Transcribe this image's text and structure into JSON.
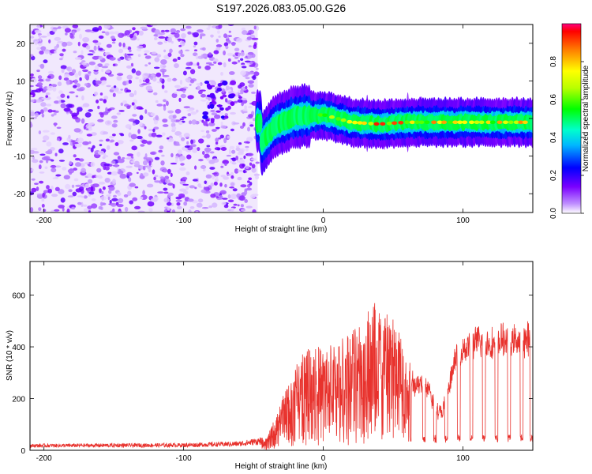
{
  "chart_data": [
    {
      "type": "heatmap",
      "title": "S197.2026.083.05.00.G26",
      "xlabel": "Height of straight line (km)",
      "ylabel": "Frequency (Hz)",
      "xlim": [
        -210,
        150
      ],
      "ylim": [
        -25,
        25
      ],
      "xticks": [
        -200,
        -100,
        0,
        100
      ],
      "xtick_labels": [
        "-200",
        "-100",
        "0",
        "100"
      ],
      "yticks": [
        -20,
        -10,
        0,
        10,
        20
      ],
      "ytick_labels": [
        "-20",
        "-10",
        "0",
        "10",
        "20"
      ],
      "colorbar": {
        "label": "Normalized spectral amplitude",
        "range": [
          0,
          1
        ],
        "ticks": [
          0.0,
          0.2,
          0.4,
          0.6,
          0.8
        ],
        "tick_labels": [
          "0.0",
          "0.2",
          "0.4",
          "0.6",
          "0.8"
        ]
      },
      "regions": [
        {
          "name": "noise",
          "x_range": [
            -210,
            -47
          ],
          "y_range": [
            -25,
            25
          ],
          "amplitude_range": [
            0.0,
            0.15
          ]
        },
        {
          "name": "signal-track",
          "x_range": [
            -47,
            150
          ],
          "center_freq_hz": [
            [
              -45,
              -7
            ],
            [
              -35,
              -2
            ],
            [
              -20,
              0.5
            ],
            [
              0,
              1
            ],
            [
              20,
              -1
            ],
            [
              40,
              -1.5
            ],
            [
              60,
              -1
            ],
            [
              100,
              -1
            ],
            [
              150,
              -1
            ]
          ],
          "peak_amplitude": 0.95
        }
      ]
    },
    {
      "type": "line",
      "title": "",
      "xlabel": "Height of straight line (km)",
      "ylabel": "SNR (10 * v/v)",
      "xlim": [
        -210,
        150
      ],
      "ylim": [
        0,
        730
      ],
      "xticks": [
        -200,
        -100,
        0,
        100
      ],
      "xtick_labels": [
        "-200",
        "-100",
        "0",
        "100"
      ],
      "yticks": [
        0,
        200,
        400,
        600
      ],
      "ytick_labels": [
        "0",
        "200",
        "400",
        "600"
      ],
      "color": "#e8322d",
      "series": [
        {
          "name": "SNR",
          "envelope_x": [
            -210,
            -100,
            -60,
            -40,
            -30,
            -20,
            -10,
            0,
            10,
            20,
            30,
            35,
            40,
            45,
            50,
            55,
            60,
            65,
            70,
            75,
            80,
            85,
            90,
            95,
            100,
            110,
            120,
            130,
            140,
            150
          ],
          "envelope_y": [
            18,
            20,
            25,
            40,
            150,
            250,
            330,
            300,
            330,
            370,
            420,
            470,
            430,
            440,
            420,
            380,
            300,
            260,
            270,
            250,
            170,
            150,
            240,
            380,
            400,
            430,
            420,
            440,
            430,
            450
          ],
          "dropouts_x": [
            62,
            72,
            80,
            88,
            97,
            106,
            115,
            124,
            133,
            142,
            149
          ]
        }
      ]
    }
  ]
}
